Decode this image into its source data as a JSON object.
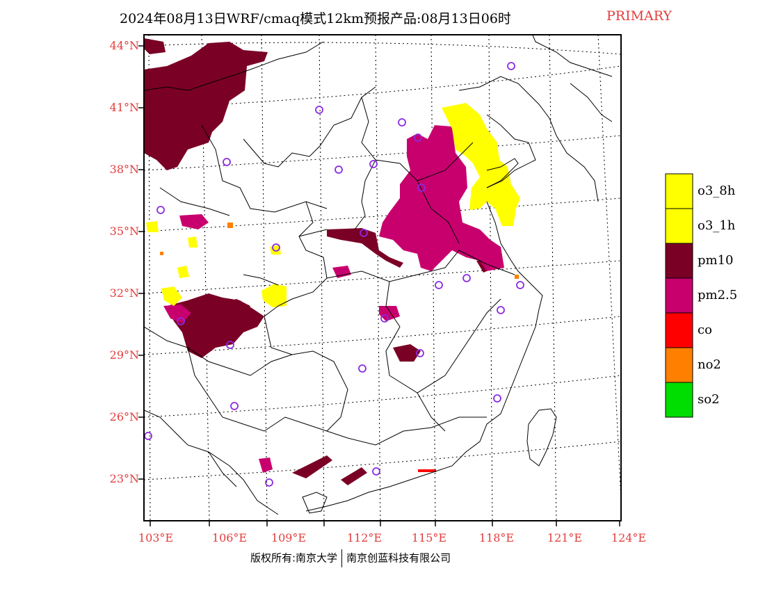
{
  "title": {
    "main": "2024年08月13日WRF/cmaq模式12km预报产品:08月13日06时",
    "tag": "PRIMARY"
  },
  "lat_labels": [
    "44°N",
    "41°N",
    "38°N",
    "35°N",
    "32°N",
    "29°N",
    "26°N",
    "23°N"
  ],
  "lon_labels": [
    "103°E",
    "106°E",
    "109°E",
    "112°E",
    "115°E",
    "118°E",
    "121°E",
    "124°E"
  ],
  "legend": [
    {
      "label": "o3_8h",
      "color": "#ffff00"
    },
    {
      "label": "o3_1h",
      "color": "#ffff00"
    },
    {
      "label": "pm10",
      "color": "#7a0026"
    },
    {
      "label": "pm2.5",
      "color": "#c8006e"
    },
    {
      "label": "co",
      "color": "#ff0000"
    },
    {
      "label": "no2",
      "color": "#ff7f00"
    },
    {
      "label": "so2",
      "color": "#00dd00"
    }
  ],
  "footer": {
    "left": "版权所有:南京大学",
    "right": "南京创蓝科技有限公司"
  },
  "colors": {
    "label_red": "#e43c3c",
    "o3": "#ffff00",
    "pm10": "#7a0026",
    "pm25": "#c8006e",
    "no2": "#ff7f00",
    "station": "#8a2be2"
  }
}
